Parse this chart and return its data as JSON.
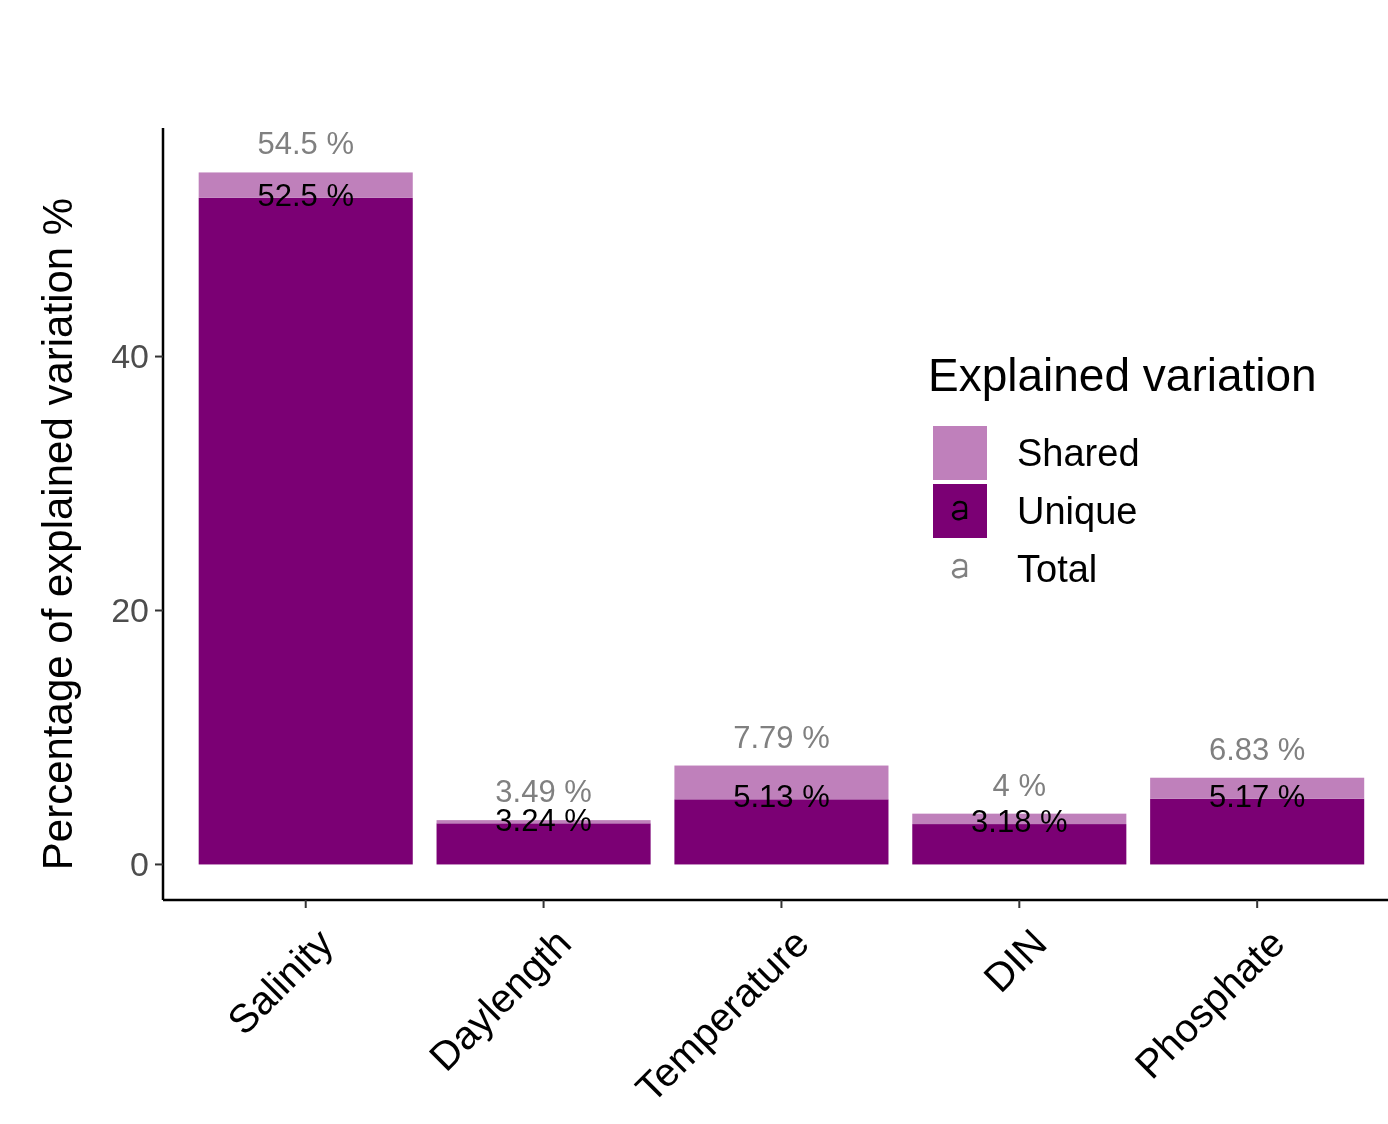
{
  "chart_data": {
    "type": "bar",
    "stacked": true,
    "ylabel": "Percentage of explained variation %",
    "legend_title": "Explained variation",
    "legend": "right",
    "categories": [
      "Salinity",
      "Daylength",
      "Temperature",
      "DIN",
      "Phosphate"
    ],
    "series": [
      {
        "name": "Unique",
        "color": "#7b0074",
        "values": [
          52.5,
          3.24,
          5.13,
          3.18,
          5.17
        ],
        "value_labels": [
          "52.5 %",
          "3.24 %",
          "5.13 %",
          "3.18 %",
          "5.17 %"
        ]
      },
      {
        "name": "Shared",
        "color": "#bf80bb",
        "values": [
          2.0,
          0.25,
          2.66,
          0.82,
          1.66
        ]
      }
    ],
    "totals": [
      "54.5 %",
      "3.49 %",
      "7.79 %",
      "4 %",
      "6.83 %"
    ],
    "annotations": [
      "Total"
    ],
    "ylim": [
      -2.8,
      58
    ],
    "yticks": [
      0,
      20,
      40
    ],
    "grid": false
  }
}
